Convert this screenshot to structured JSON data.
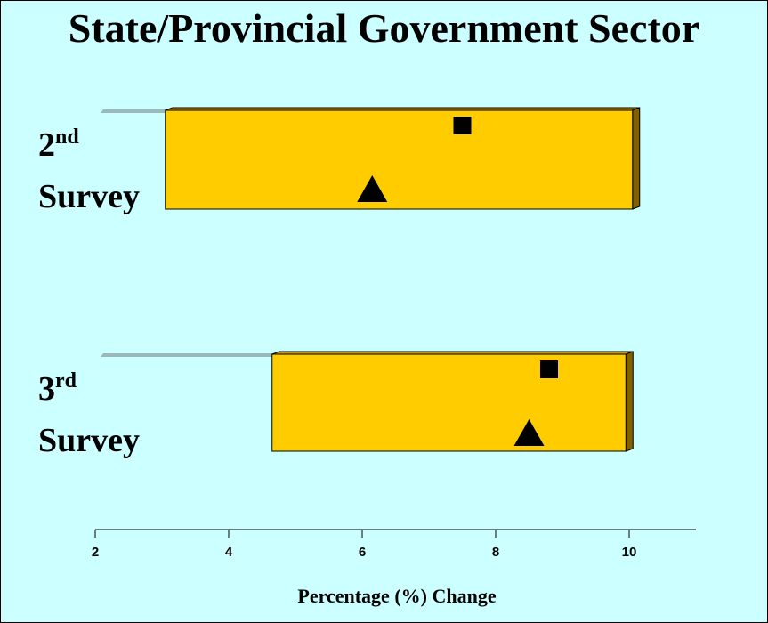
{
  "chart_data": {
    "type": "floating-bar",
    "title": "State/Provincial Government Sector",
    "xlabel": "Percentage (%) Change",
    "xlim": [
      2,
      11
    ],
    "xticks": [
      2,
      4,
      6,
      8,
      10
    ],
    "bar_color": "#ffcc00",
    "bar_side_color": "#806000",
    "categories": [
      {
        "num": "2",
        "suffix": "nd",
        "word": "Survey",
        "low": 3.05,
        "high": 10.05,
        "square": 7.5,
        "triangle": 6.15
      },
      {
        "num": "3",
        "suffix": "rd",
        "word": "Survey",
        "low": 4.65,
        "high": 9.95,
        "square": 8.8,
        "triangle": 8.5
      }
    ]
  }
}
